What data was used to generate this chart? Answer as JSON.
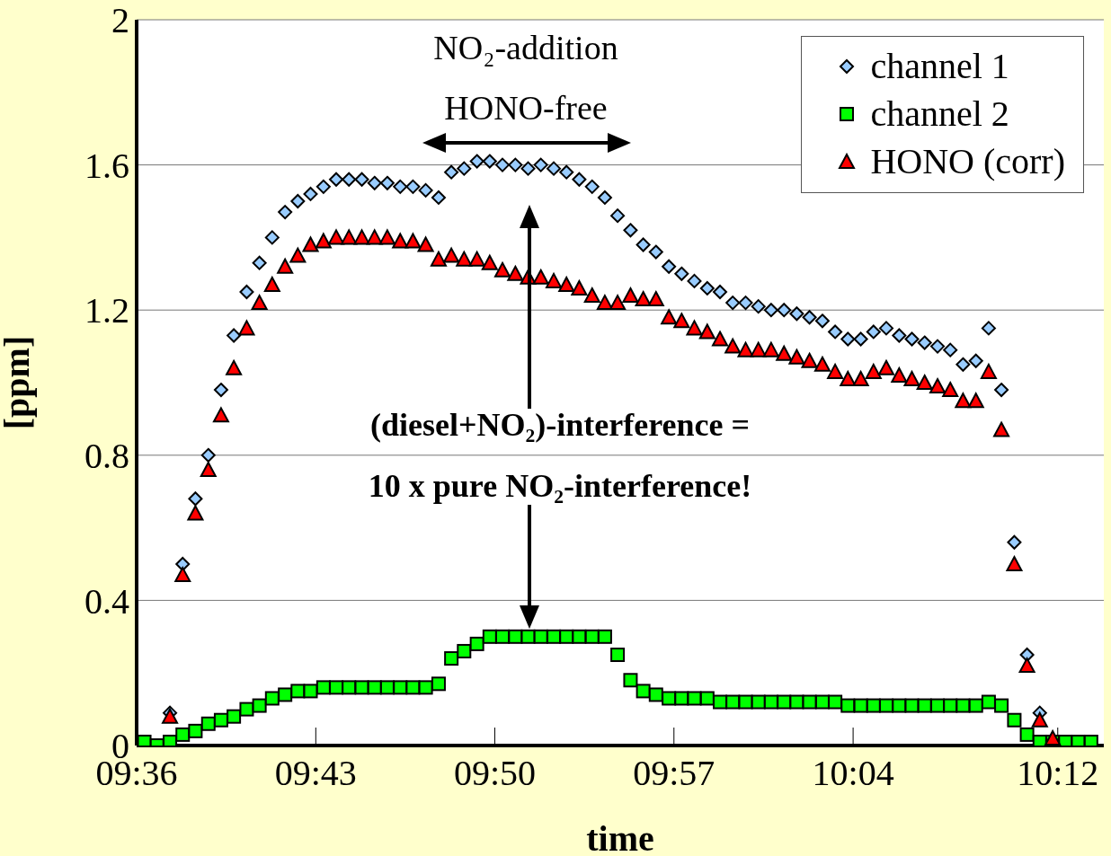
{
  "chart_data": {
    "type": "scatter",
    "xlabel": "time",
    "ylabel": "[ppm]",
    "x": [
      9.605,
      9.6133,
      9.6217,
      9.63,
      9.6383,
      9.6467,
      9.655,
      9.6633,
      9.6717,
      9.68,
      9.6883,
      9.6967,
      9.705,
      9.7133,
      9.7217,
      9.73,
      9.7383,
      9.7467,
      9.755,
      9.7633,
      9.7717,
      9.78,
      9.7883,
      9.7967,
      9.805,
      9.8133,
      9.8217,
      9.83,
      9.8383,
      9.8467,
      9.855,
      9.8633,
      9.8717,
      9.88,
      9.8883,
      9.8967,
      9.905,
      9.9133,
      9.9217,
      9.93,
      9.9383,
      9.9467,
      9.955,
      9.9633,
      9.9717,
      9.98,
      9.9883,
      9.9967,
      10.005,
      10.0133,
      10.0217,
      10.03,
      10.0383,
      10.0467,
      10.055,
      10.0633,
      10.0717,
      10.08,
      10.0883,
      10.0967,
      10.105,
      10.1133,
      10.1217,
      10.13,
      10.1383,
      10.1467,
      10.155,
      10.1633,
      10.1717,
      10.18,
      10.1883,
      10.1967,
      10.205,
      10.2133,
      10.2217
    ],
    "series": [
      {
        "name": "channel 1",
        "color": "#99ccff",
        "marker": "diamond",
        "values": [
          null,
          null,
          0.09,
          0.5,
          0.68,
          0.8,
          0.98,
          1.13,
          1.25,
          1.33,
          1.4,
          1.47,
          1.5,
          1.52,
          1.54,
          1.56,
          1.56,
          1.56,
          1.55,
          1.55,
          1.54,
          1.54,
          1.53,
          1.51,
          1.58,
          1.59,
          1.61,
          1.61,
          1.6,
          1.6,
          1.59,
          1.6,
          1.59,
          1.58,
          1.56,
          1.54,
          1.51,
          1.46,
          1.42,
          1.38,
          1.36,
          1.32,
          1.3,
          1.28,
          1.26,
          1.25,
          1.22,
          1.22,
          1.21,
          1.2,
          1.2,
          1.19,
          1.18,
          1.17,
          1.14,
          1.12,
          1.12,
          1.14,
          1.15,
          1.13,
          1.12,
          1.11,
          1.1,
          1.09,
          1.05,
          1.06,
          1.15,
          0.98,
          0.56,
          0.25,
          0.09,
          null,
          null,
          null,
          null
        ]
      },
      {
        "name": "channel 2",
        "color": "#00ff00",
        "marker": "square",
        "values": [
          0.01,
          0.0,
          0.01,
          0.03,
          0.04,
          0.06,
          0.07,
          0.08,
          0.1,
          0.11,
          0.13,
          0.14,
          0.15,
          0.15,
          0.16,
          0.16,
          0.16,
          0.16,
          0.16,
          0.16,
          0.16,
          0.16,
          0.16,
          0.17,
          0.24,
          0.26,
          0.28,
          0.3,
          0.3,
          0.3,
          0.3,
          0.3,
          0.3,
          0.3,
          0.3,
          0.3,
          0.3,
          0.25,
          0.18,
          0.15,
          0.14,
          0.13,
          0.13,
          0.13,
          0.13,
          0.12,
          0.12,
          0.12,
          0.12,
          0.12,
          0.12,
          0.12,
          0.12,
          0.12,
          0.12,
          0.11,
          0.11,
          0.11,
          0.11,
          0.11,
          0.11,
          0.11,
          0.11,
          0.11,
          0.11,
          0.11,
          0.12,
          0.11,
          0.07,
          0.03,
          0.01,
          0.01,
          0.01,
          0.01,
          0.01
        ]
      },
      {
        "name": "HONO (corr)",
        "color": "#ff0000",
        "marker": "triangle",
        "values": [
          null,
          null,
          0.08,
          0.47,
          0.64,
          0.76,
          0.91,
          1.04,
          1.15,
          1.22,
          1.27,
          1.32,
          1.35,
          1.38,
          1.39,
          1.4,
          1.4,
          1.4,
          1.4,
          1.4,
          1.39,
          1.39,
          1.38,
          1.34,
          1.35,
          1.34,
          1.34,
          1.33,
          1.31,
          1.3,
          1.29,
          1.29,
          1.28,
          1.27,
          1.26,
          1.24,
          1.22,
          1.22,
          1.24,
          1.23,
          1.23,
          1.18,
          1.17,
          1.15,
          1.14,
          1.12,
          1.1,
          1.09,
          1.09,
          1.09,
          1.08,
          1.07,
          1.06,
          1.05,
          1.03,
          1.01,
          1.01,
          1.03,
          1.04,
          1.02,
          1.01,
          1.0,
          0.99,
          0.98,
          0.95,
          0.95,
          1.03,
          0.87,
          0.5,
          0.22,
          0.07,
          0.02,
          null,
          null,
          null
        ]
      }
    ],
    "xlim": [
      9.6,
      10.23
    ],
    "xticks": [
      {
        "value": 9.6,
        "label": "09:36"
      },
      {
        "value": 9.7167,
        "label": "09:43"
      },
      {
        "value": 9.8333,
        "label": "09:50"
      },
      {
        "value": 9.95,
        "label": "09:57"
      },
      {
        "value": 10.0667,
        "label": "10:04"
      },
      {
        "value": 10.2,
        "label": "10:12"
      }
    ],
    "ylim": [
      0,
      2
    ],
    "yticks": [
      0,
      0.4,
      0.8,
      1.2,
      1.6,
      2
    ],
    "grid": "y",
    "legend": "top right",
    "annotations": [
      "NO₂-addition",
      "HONO-free",
      "(diesel+NO₂)-interference =",
      "10 x pure NO₂-interference!"
    ]
  }
}
